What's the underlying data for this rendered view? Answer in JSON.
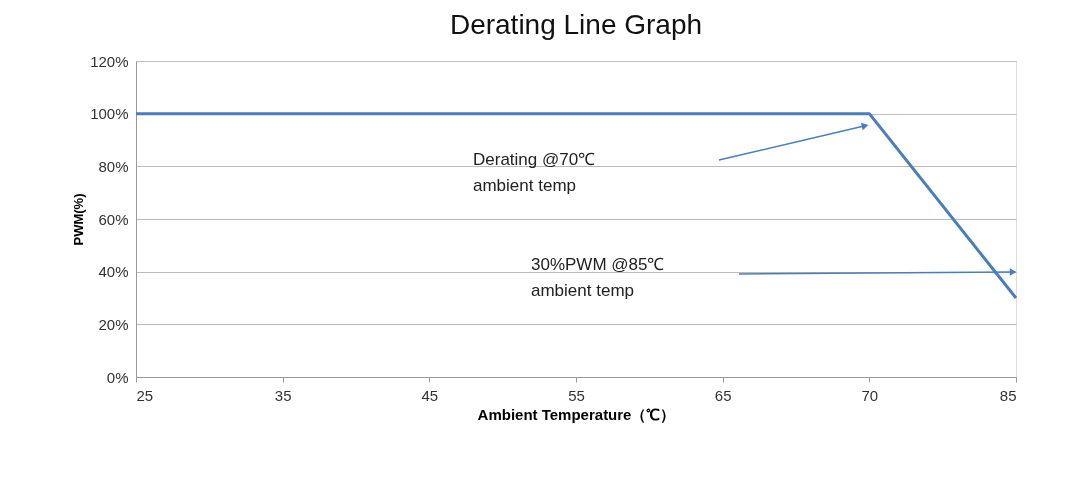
{
  "chart_data": {
    "type": "line",
    "title": "Derating Line Graph",
    "xlabel": "Ambient Temperature（℃）",
    "ylabel": "PWM(%)",
    "categories": [
      "25",
      "35",
      "45",
      "55",
      "65",
      "70",
      "85"
    ],
    "series": [
      {
        "color": "#4a7ebb",
        "values": [
          100,
          100,
          100,
          100,
          100,
          100,
          30
        ]
      }
    ],
    "ylim": [
      0,
      120
    ],
    "yticks": [
      {
        "value": 0,
        "label": "0%"
      },
      {
        "value": 20,
        "label": "20%"
      },
      {
        "value": 40,
        "label": "40%"
      },
      {
        "value": 60,
        "label": "60%"
      },
      {
        "value": 80,
        "label": "80%"
      },
      {
        "value": 100,
        "label": "100%"
      },
      {
        "value": 120,
        "label": "120%"
      }
    ],
    "grid": "y",
    "marker": "none",
    "line_style": "solid",
    "annotations": [
      "Derating @70℃\nambient  temp",
      "30%PWM @85℃\nambient  temp"
    ]
  }
}
